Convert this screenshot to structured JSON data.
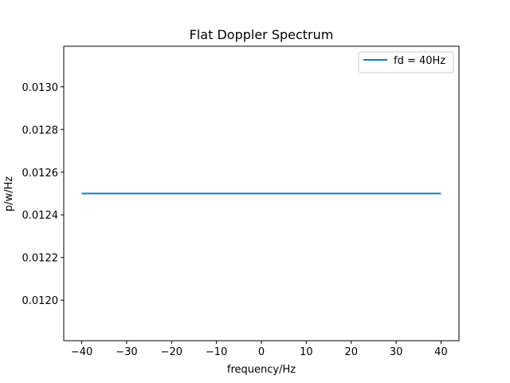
{
  "chart_data": {
    "type": "line",
    "title": "Flat Doppler Spectrum",
    "xlabel": "frequency/Hz",
    "ylabel": "p/w/Hz",
    "xlim": [
      -44,
      44
    ],
    "ylim": [
      0.01181,
      0.01319
    ],
    "x_ticks": [
      -40,
      -30,
      -20,
      -10,
      0,
      10,
      20,
      30,
      40
    ],
    "x_tick_labels": [
      "−40",
      "−30",
      "−20",
      "−10",
      "0",
      "10",
      "20",
      "30",
      "40"
    ],
    "y_ticks": [
      0.012,
      0.0122,
      0.0124,
      0.0126,
      0.0128,
      0.013
    ],
    "y_tick_labels": [
      "0.0120",
      "0.0122",
      "0.0124",
      "0.0126",
      "0.0128",
      "0.0130"
    ],
    "grid": false,
    "legend_position": "upper right",
    "series": [
      {
        "name": "fd = 40Hz",
        "color": "#1f77b4",
        "x": [
          -40,
          40
        ],
        "y": [
          0.0125,
          0.0125
        ]
      }
    ]
  }
}
